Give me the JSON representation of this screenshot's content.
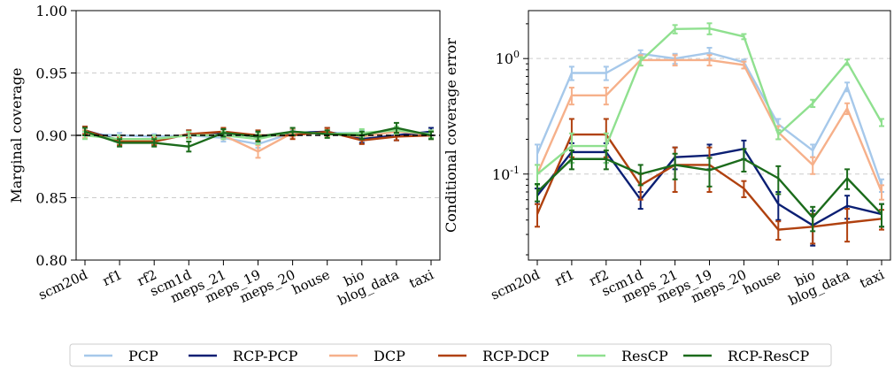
{
  "chart_data": [
    {
      "type": "line",
      "ylabel": "Marginal coverage",
      "ylim": [
        0.8,
        1.0
      ],
      "yscale": "linear",
      "yticks": [
        "0.80",
        "0.85",
        "0.90",
        "0.95",
        "1.00"
      ],
      "target_line": 0.9,
      "categories": [
        "scm20d",
        "rf1",
        "rf2",
        "scm1d",
        "meps_21",
        "meps_19",
        "meps_20",
        "house",
        "bio",
        "blog_data",
        "taxi"
      ],
      "series": [
        {
          "name": "PCP",
          "color": "#a6c8ea",
          "values": [
            0.901,
            0.9,
            0.899,
            0.9,
            0.898,
            0.893,
            0.902,
            0.902,
            0.902,
            0.903,
            0.9
          ],
          "err": [
            0.003,
            0.002,
            0.002,
            0.002,
            0.003,
            0.003,
            0.002,
            0.002,
            0.002,
            0.002,
            0.003
          ]
        },
        {
          "name": "RCP-PCP",
          "color": "#0b1f73",
          "values": [
            0.904,
            0.896,
            0.896,
            0.901,
            0.902,
            0.899,
            0.902,
            0.903,
            0.897,
            0.9,
            0.903
          ],
          "err": [
            0.003,
            0.003,
            0.003,
            0.003,
            0.003,
            0.004,
            0.003,
            0.003,
            0.003,
            0.004,
            0.003
          ]
        },
        {
          "name": "DCP",
          "color": "#f6b08a",
          "values": [
            0.901,
            0.896,
            0.896,
            0.901,
            0.9,
            0.887,
            0.902,
            0.902,
            0.899,
            0.903,
            0.901
          ],
          "err": [
            0.003,
            0.003,
            0.003,
            0.003,
            0.003,
            0.005,
            0.003,
            0.003,
            0.003,
            0.003,
            0.003
          ]
        },
        {
          "name": "RCP-DCP",
          "color": "#b0410f",
          "values": [
            0.904,
            0.895,
            0.895,
            0.901,
            0.903,
            0.9,
            0.9,
            0.903,
            0.896,
            0.899,
            0.9
          ],
          "err": [
            0.003,
            0.003,
            0.003,
            0.003,
            0.003,
            0.004,
            0.003,
            0.003,
            0.003,
            0.003,
            0.003
          ]
        },
        {
          "name": "ResCP",
          "color": "#8fe08f",
          "values": [
            0.9,
            0.897,
            0.897,
            0.9,
            0.9,
            0.897,
            0.903,
            0.901,
            0.902,
            0.904,
            0.901
          ],
          "err": [
            0.003,
            0.003,
            0.003,
            0.003,
            0.003,
            0.004,
            0.003,
            0.003,
            0.003,
            0.003,
            0.003
          ]
        },
        {
          "name": "RCP-ResCP",
          "color": "#1b6b1b",
          "values": [
            0.903,
            0.894,
            0.894,
            0.891,
            0.902,
            0.899,
            0.903,
            0.901,
            0.9,
            0.906,
            0.9
          ],
          "err": [
            0.003,
            0.003,
            0.003,
            0.004,
            0.003,
            0.004,
            0.003,
            0.003,
            0.003,
            0.004,
            0.003
          ]
        }
      ]
    },
    {
      "type": "line",
      "ylabel": "Conditional coverage error",
      "yscale": "log",
      "ylim": [
        0.018,
        2.6
      ],
      "ytick_values": [
        0.1,
        1.0
      ],
      "yticks": [
        "10",
        "10"
      ],
      "ytick_exponents": [
        "-1",
        "0"
      ],
      "categories": [
        "scm20d",
        "rf1",
        "rf2",
        "scm1d",
        "meps_21",
        "meps_19",
        "meps_20",
        "house",
        "bio",
        "blog_data",
        "taxi"
      ],
      "series": [
        {
          "name": "PCP",
          "color": "#a6c8ea",
          "values": [
            0.15,
            0.75,
            0.75,
            1.1,
            1.0,
            1.12,
            0.93,
            0.27,
            0.16,
            0.57,
            0.08
          ],
          "err": [
            0.03,
            0.1,
            0.1,
            0.08,
            0.1,
            0.12,
            0.05,
            0.03,
            0.02,
            0.05,
            0.01
          ]
        },
        {
          "name": "RCP-PCP",
          "color": "#0b1f73",
          "values": [
            0.065,
            0.155,
            0.155,
            0.06,
            0.14,
            0.145,
            0.165,
            0.055,
            0.036,
            0.053,
            0.045
          ],
          "err": [
            0.01,
            0.03,
            0.03,
            0.01,
            0.03,
            0.035,
            0.03,
            0.015,
            0.012,
            0.012,
            0.01
          ]
        },
        {
          "name": "DCP",
          "color": "#f6b08a",
          "values": [
            0.1,
            0.48,
            0.48,
            0.97,
            0.97,
            0.97,
            0.88,
            0.23,
            0.12,
            0.37,
            0.07
          ],
          "err": [
            0.02,
            0.08,
            0.08,
            0.1,
            0.1,
            0.1,
            0.06,
            0.03,
            0.02,
            0.04,
            0.01
          ]
        },
        {
          "name": "RCP-DCP",
          "color": "#b0410f",
          "values": [
            0.045,
            0.22,
            0.22,
            0.08,
            0.12,
            0.12,
            0.075,
            0.033,
            0.035,
            0.038,
            0.041
          ],
          "err": [
            0.01,
            0.08,
            0.08,
            0.02,
            0.05,
            0.05,
            0.012,
            0.006,
            0.01,
            0.012,
            0.008
          ]
        },
        {
          "name": "ResCP",
          "color": "#8fe08f",
          "values": [
            0.1,
            0.175,
            0.175,
            0.95,
            1.8,
            1.82,
            1.55,
            0.22,
            0.41,
            0.93,
            0.28
          ],
          "err": [
            0.02,
            0.05,
            0.05,
            0.08,
            0.15,
            0.2,
            0.08,
            0.02,
            0.03,
            0.05,
            0.02
          ]
        },
        {
          "name": "RCP-ResCP",
          "color": "#1b6b1b",
          "values": [
            0.07,
            0.135,
            0.135,
            0.1,
            0.12,
            0.108,
            0.135,
            0.092,
            0.042,
            0.092,
            0.045
          ],
          "err": [
            0.012,
            0.025,
            0.025,
            0.02,
            0.03,
            0.03,
            0.03,
            0.025,
            0.01,
            0.018,
            0.01
          ]
        }
      ]
    }
  ],
  "legend": {
    "placement": "bottom-center",
    "items": [
      {
        "label": "PCP",
        "color": "#a6c8ea"
      },
      {
        "label": "RCP-PCP",
        "color": "#0b1f73"
      },
      {
        "label": "DCP",
        "color": "#f6b08a"
      },
      {
        "label": "RCP-DCP",
        "color": "#b0410f"
      },
      {
        "label": "ResCP",
        "color": "#8fe08f"
      },
      {
        "label": "RCP-ResCP",
        "color": "#1b6b1b"
      }
    ]
  }
}
